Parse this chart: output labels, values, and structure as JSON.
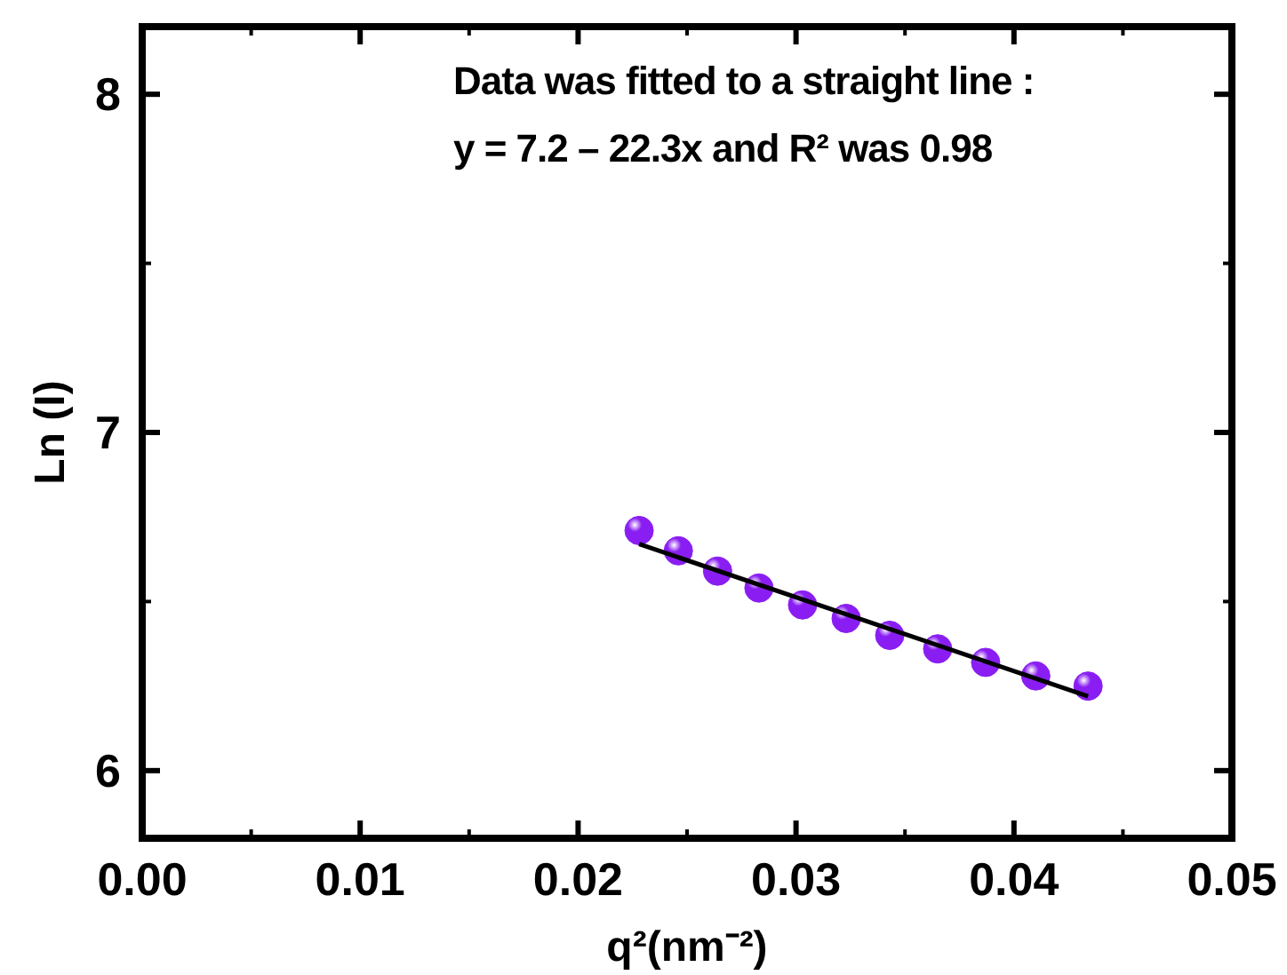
{
  "chart_data": {
    "type": "scatter",
    "xlabel": "q²(nm⁻²)",
    "ylabel": "Ln (I)",
    "annotations": [
      "Data was fitted to a straight line :",
      "y = 7.2 – 22.3x and R² was 0.98"
    ],
    "xlim": [
      0,
      0.05
    ],
    "ylim": [
      5.8,
      8.2
    ],
    "xticks": [
      {
        "value": 0,
        "label": "0.00"
      },
      {
        "value": 0.01,
        "label": "0.01"
      },
      {
        "value": 0.02,
        "label": "0.02"
      },
      {
        "value": 0.03,
        "label": "0.03"
      },
      {
        "value": 0.04,
        "label": "0.04"
      },
      {
        "value": 0.05,
        "label": "0.05"
      }
    ],
    "yticks": [
      6,
      7,
      8
    ],
    "grid": false,
    "series": [
      {
        "color": "#8a1ef2",
        "marker": "circle",
        "x": [
          0.0228,
          0.0246,
          0.0264,
          0.0283,
          0.0303,
          0.0323,
          0.0343,
          0.0365,
          0.0387,
          0.041,
          0.0434
        ],
        "values": [
          6.71,
          6.65,
          6.59,
          6.54,
          6.49,
          6.45,
          6.4,
          6.36,
          6.32,
          6.28,
          6.25
        ]
      },
      {
        "type": "line",
        "color": "#000000",
        "line_style": "solid",
        "marker": "none",
        "x": [
          0.0228,
          0.0434
        ],
        "values": [
          6.67,
          6.22
        ]
      }
    ]
  }
}
